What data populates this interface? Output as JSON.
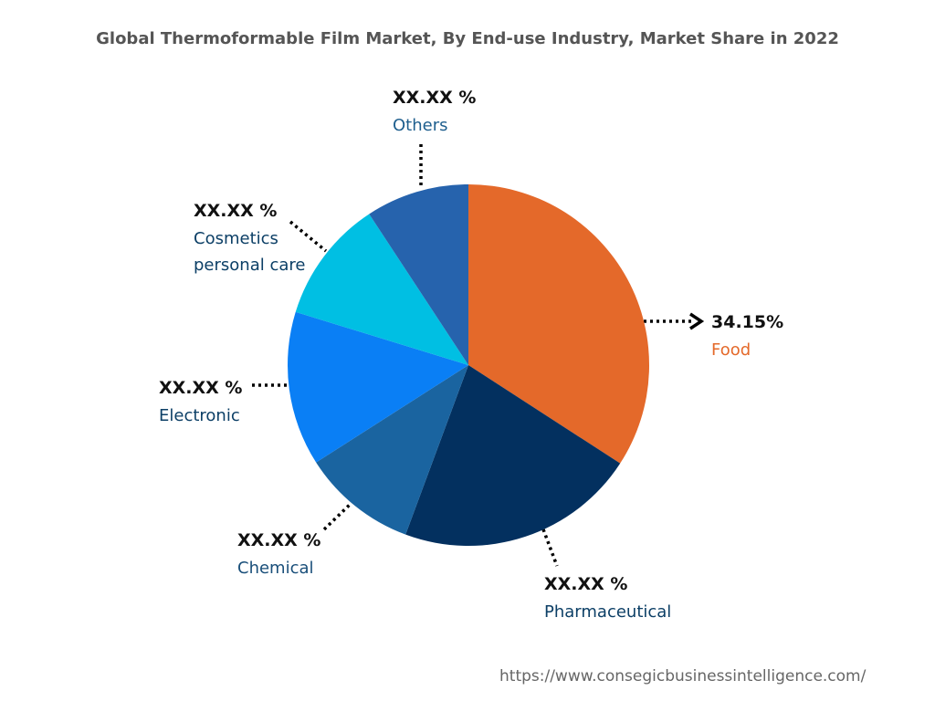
{
  "chart_data": {
    "type": "pie",
    "title": "Global Thermoformable Film Market, By End-use Industry, Market Share in 2022",
    "categories": [
      "Food",
      "Pharmaceutical",
      "Chemical",
      "Electronic",
      "Cosmetics personal care",
      "Others"
    ],
    "values": [
      34.15,
      21.5,
      10.3,
      13.8,
      11.0,
      9.25
    ],
    "value_labels": [
      "34.15%",
      "XX.XX %",
      "XX.XX %",
      "XX.XX %",
      "XX.XX %",
      "XX.XX %"
    ],
    "colors": [
      "#e4692a",
      "#03305f",
      "#1a64a0",
      "#0a7ff5",
      "#00bfe3",
      "#2663ad"
    ]
  },
  "source": "https://www.consegicbusinessintelligence.com/"
}
